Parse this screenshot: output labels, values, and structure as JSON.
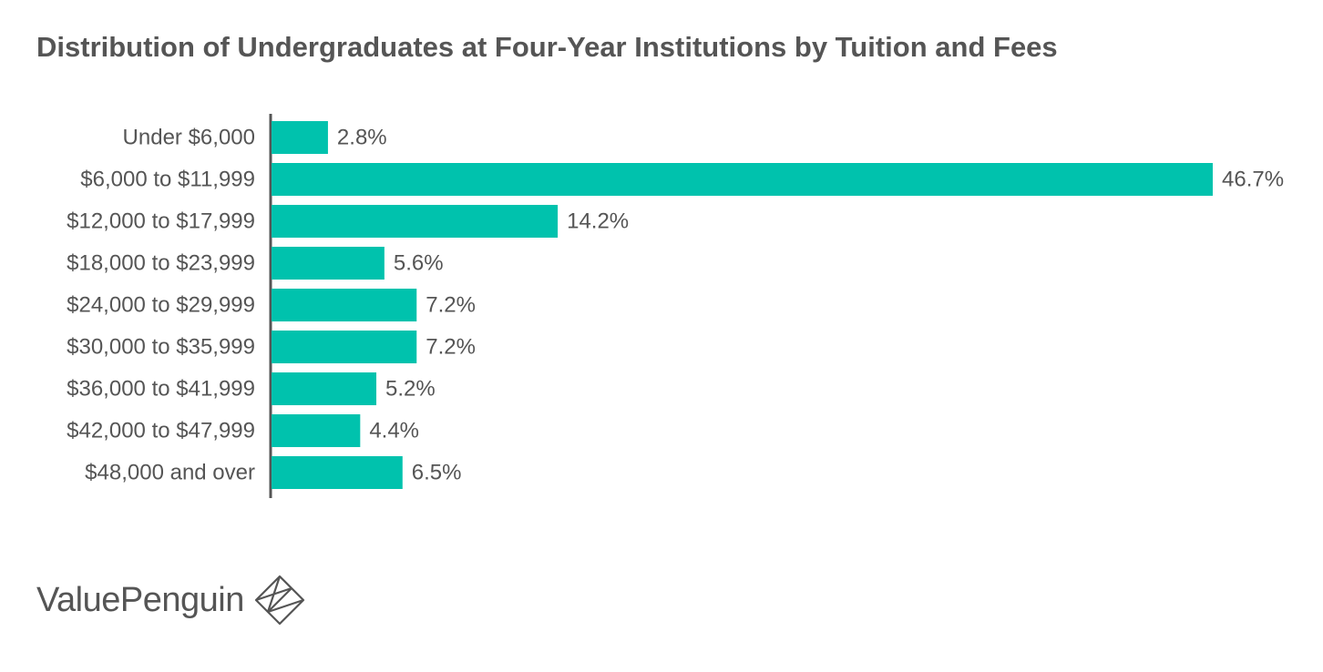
{
  "title": "Distribution of Undergraduates at Four-Year Institutions by Tuition and Fees",
  "brand": {
    "name": "ValuePenguin",
    "icon": "valuepenguin-diamond-logo-icon"
  },
  "colors": {
    "bar": "#00C2AD",
    "axis": "#555555",
    "text": "#555555"
  },
  "chart_data": {
    "type": "bar",
    "orientation": "horizontal",
    "categories": [
      "Under $6,000",
      "$6,000 to $11,999",
      "$12,000 to $17,999",
      "$18,000 to $23,999",
      "$24,000 to $29,999",
      "$30,000 to $35,999",
      "$36,000 to $41,999",
      "$42,000 to $47,999",
      "$48,000 and over"
    ],
    "values": [
      2.8,
      46.7,
      14.2,
      5.6,
      7.2,
      7.2,
      5.2,
      4.4,
      6.5
    ],
    "value_labels": [
      "2.8%",
      "46.7%",
      "14.2%",
      "5.6%",
      "7.2%",
      "7.2%",
      "5.2%",
      "4.4%",
      "6.5%"
    ],
    "xlim": [
      0,
      46.7
    ],
    "grid": false,
    "legend": "none"
  }
}
